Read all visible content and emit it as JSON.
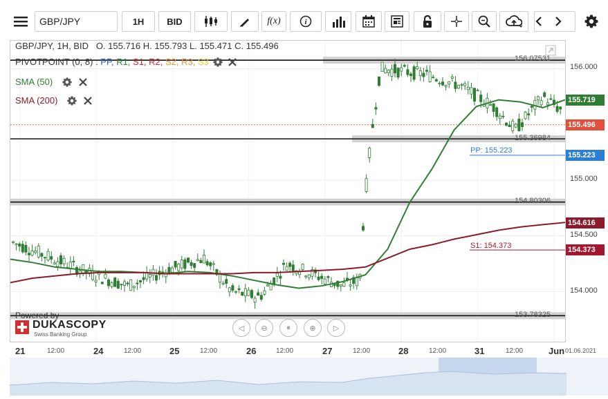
{
  "toolbar": {
    "symbol": "GBP/JPY",
    "timeframe": "1H",
    "price_type": "BID",
    "fx_label": "f(x)",
    "info_label": "i"
  },
  "ohlc": {
    "prefix": "GBP/JPY, 1H, BID",
    "open": "O. 155.716",
    "high": "H. 155.793",
    "low": "L. 155.471",
    "close": "C. 155.496"
  },
  "indicators": {
    "pivot": {
      "name": "PIVOTPOINT (0, 8)",
      "sep": " : ",
      "levels": [
        {
          "label": "PP,",
          "color": "#2a5ccf"
        },
        {
          "label": "R1,",
          "color": "#2b8a2b"
        },
        {
          "label": "S1,",
          "color": "#cc2a2a"
        },
        {
          "label": "R2,",
          "color": "#cc2a2a"
        },
        {
          "label": "S2,",
          "color": "#e8922a"
        },
        {
          "label": "R3,",
          "color": "#e8922a"
        },
        {
          "label": "S3",
          "color": "#e8d12a"
        }
      ]
    },
    "sma50": {
      "label": "SMA (50)",
      "color": "#2e7d32"
    },
    "sma200": {
      "label": "SMA (200)",
      "color": "#8b1a2b"
    }
  },
  "price_axis": {
    "ticks": [
      "156.000",
      "155.500",
      "155.000",
      "154.500",
      "154.000"
    ]
  },
  "price_tags": {
    "sma50": {
      "value": "155.719",
      "color": "#2e7d32"
    },
    "last": {
      "value": "155.496",
      "color": "#e0503a"
    },
    "pp": {
      "value": "155.223",
      "color": "#2a7fd4"
    },
    "sma200": {
      "value": "154.616",
      "color": "#8b1a2b"
    },
    "s1": {
      "value": "154.373",
      "color": "#a01830"
    }
  },
  "levels": {
    "l1": "156.07531",
    "l2": "155.36984",
    "l3": "154.80306",
    "l4": "153.78325",
    "pp": "PP: 155.223",
    "s1": "S1: 154.373"
  },
  "time_axis": {
    "days": [
      "21",
      "24",
      "25",
      "26",
      "27",
      "28",
      "31",
      "Jun"
    ],
    "hours": [
      "12:00",
      "12:00",
      "12:00",
      "12:00",
      "12:00",
      "12:00",
      "12:00"
    ],
    "end_date": "01.06.2021"
  },
  "branding": {
    "powered": "Powered by",
    "name": "DUKASCOPY",
    "tagline": "Swiss Banking Group"
  },
  "chart_data": {
    "type": "line",
    "title": "GBP/JPY, 1H, BID",
    "ylim": [
      153.55,
      156.25
    ],
    "series": [
      {
        "name": "SMA (50)",
        "values": [
          154.29,
          154.26,
          154.22,
          154.2,
          154.18,
          154.18,
          154.17,
          154.16,
          154.18,
          154.17,
          154.14,
          154.1,
          154.06,
          154.03,
          154.05,
          154.09,
          154.15,
          154.38,
          154.8,
          155.1,
          155.45,
          155.66,
          155.72,
          155.7,
          155.65,
          155.72
        ]
      },
      {
        "name": "SMA (200)",
        "values": [
          154.08,
          154.12,
          154.14,
          154.16,
          154.17,
          154.17,
          154.17,
          154.16,
          154.16,
          154.16,
          154.16,
          154.17,
          154.17,
          154.18,
          154.19,
          154.2,
          154.22,
          154.3,
          154.38,
          154.42,
          154.47,
          154.51,
          154.55,
          154.58,
          154.6,
          154.62
        ]
      }
    ]
  }
}
